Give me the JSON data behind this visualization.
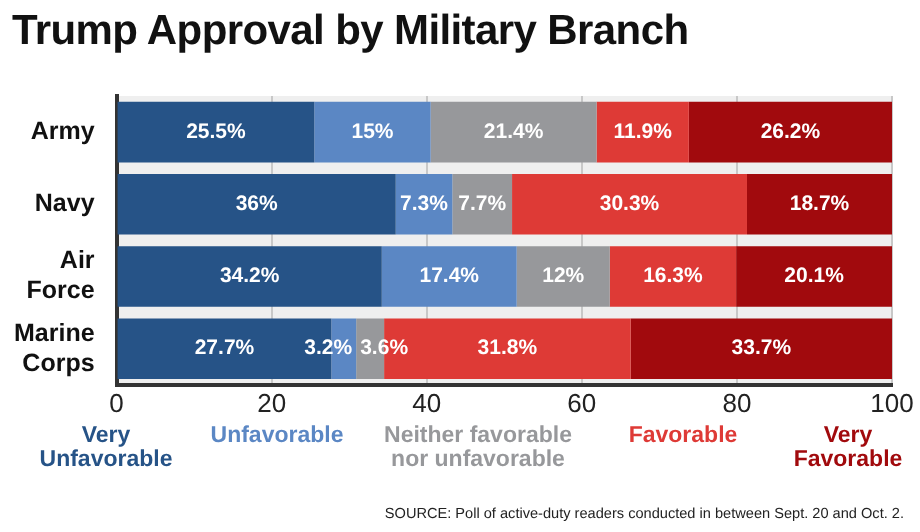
{
  "chart_data": {
    "type": "bar",
    "orientation": "horizontal",
    "stacked": true,
    "title": "Trump Approval by Military Branch",
    "categories": [
      "Army",
      "Navy",
      "Air Force",
      "Marine Corps"
    ],
    "series": [
      {
        "name": "Very Unfavorable",
        "color": "#265387",
        "values": [
          25.5,
          36,
          34.2,
          27.7
        ],
        "value_labels": [
          "25.5%",
          "36%",
          "34.2%",
          "27.7%"
        ]
      },
      {
        "name": "Unfavorable",
        "color": "#5b87c4",
        "values": [
          15,
          7.3,
          17.4,
          3.2
        ],
        "value_labels": [
          "15%",
          "7.3%",
          "17.4%",
          "3.2%"
        ]
      },
      {
        "name": "Neither favorable nor unfavorable",
        "color": "#97989b",
        "values": [
          21.4,
          7.7,
          12,
          3.6
        ],
        "value_labels": [
          "21.4%",
          "7.7%",
          "12%",
          "3.6%"
        ]
      },
      {
        "name": "Favorable",
        "color": "#de3a36",
        "values": [
          11.9,
          30.3,
          16.3,
          31.8
        ],
        "value_labels": [
          "11.9%",
          "30.3%",
          "16.3%",
          "31.8%"
        ]
      },
      {
        "name": "Very Favorable",
        "color": "#a10a0d",
        "values": [
          26.2,
          18.7,
          20.1,
          33.7
        ],
        "value_labels": [
          "26.2%",
          "18.7%",
          "20.1%",
          "33.7%"
        ]
      }
    ],
    "xlim": [
      0,
      100
    ],
    "xticks": [
      0,
      20,
      40,
      60,
      80,
      100
    ],
    "grid": "x",
    "legend": "bottom",
    "annotations": [
      "SOURCE: Poll of active-duty readers conducted in between Sept. 20 and Oct. 2."
    ]
  }
}
